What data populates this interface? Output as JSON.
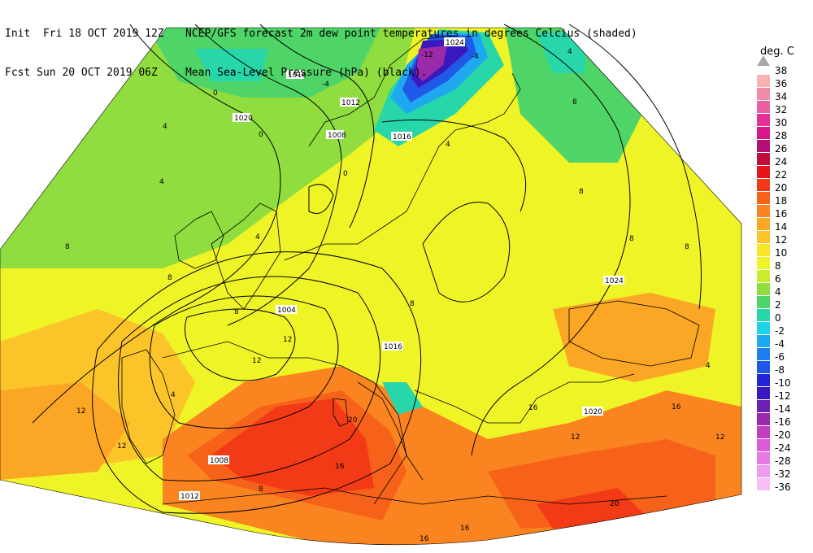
{
  "header": {
    "line1_left": "Init  Fri 18 OCT 2019 12Z",
    "line1_right": "NCEP/GFS forecast 2m dew point temperatures in degrees Celcius (shaded)",
    "line2_left": "Fcst Sun 20 OCT 2019 06Z",
    "line2_right": "Mean Sea-Level Pressure (hPa) (black)."
  },
  "legend": {
    "unit": "deg. C",
    "items": [
      {
        "label": "38",
        "color": "#a8a8a8"
      },
      {
        "label": "36",
        "color": "#f9b2b2"
      },
      {
        "label": "34",
        "color": "#f28ba8"
      },
      {
        "label": "32",
        "color": "#ea5fa0"
      },
      {
        "label": "30",
        "color": "#e43197"
      },
      {
        "label": "28",
        "color": "#d8178a"
      },
      {
        "label": "26",
        "color": "#b40f76"
      },
      {
        "label": "24",
        "color": "#c40e3a"
      },
      {
        "label": "22",
        "color": "#e4141d"
      },
      {
        "label": "20",
        "color": "#f23a16"
      },
      {
        "label": "18",
        "color": "#f7621a"
      },
      {
        "label": "16",
        "color": "#fa8520"
      },
      {
        "label": "14",
        "color": "#fba624"
      },
      {
        "label": "12",
        "color": "#fbc52a"
      },
      {
        "label": "10",
        "color": "#f8e42c"
      },
      {
        "label": "8",
        "color": "#eef425"
      },
      {
        "label": "6",
        "color": "#c9ec2c"
      },
      {
        "label": "4",
        "color": "#8fdd3e"
      },
      {
        "label": "2",
        "color": "#4fd468"
      },
      {
        "label": "0",
        "color": "#27d6a9"
      },
      {
        "label": "-2",
        "color": "#22d2e6"
      },
      {
        "label": "-4",
        "color": "#1ea8f0"
      },
      {
        "label": "-6",
        "color": "#1f7ff0"
      },
      {
        "label": "-8",
        "color": "#2058e8"
      },
      {
        "label": "-10",
        "color": "#2126d8"
      },
      {
        "label": "-12",
        "color": "#3a18c0"
      },
      {
        "label": "-14",
        "color": "#6a22b4"
      },
      {
        "label": "-16",
        "color": "#9a2aa8"
      },
      {
        "label": "-20",
        "color": "#c43cc0"
      },
      {
        "label": "-24",
        "color": "#dc5cd8"
      },
      {
        "label": "-28",
        "color": "#e87ae4"
      },
      {
        "label": "-32",
        "color": "#f09cee"
      },
      {
        "label": "-36",
        "color": "#f8bcf6"
      }
    ]
  },
  "isobar_labels": [
    "1020",
    "1016",
    "1012",
    "1008",
    "1004",
    "1016",
    "1012",
    "1008",
    "1016",
    "1020",
    "1024",
    "1024"
  ],
  "dewpoint_labels": [
    "-4",
    "0",
    "0",
    "4",
    "4",
    "4",
    "4",
    "4",
    "8",
    "8",
    "8",
    "8",
    "8",
    "8",
    "8",
    "12",
    "12",
    "12",
    "12",
    "12",
    "16",
    "16",
    "16",
    "16",
    "20",
    "20",
    "-4",
    "-12",
    "0",
    "4",
    "8",
    "12",
    "16",
    "8",
    "4"
  ]
}
